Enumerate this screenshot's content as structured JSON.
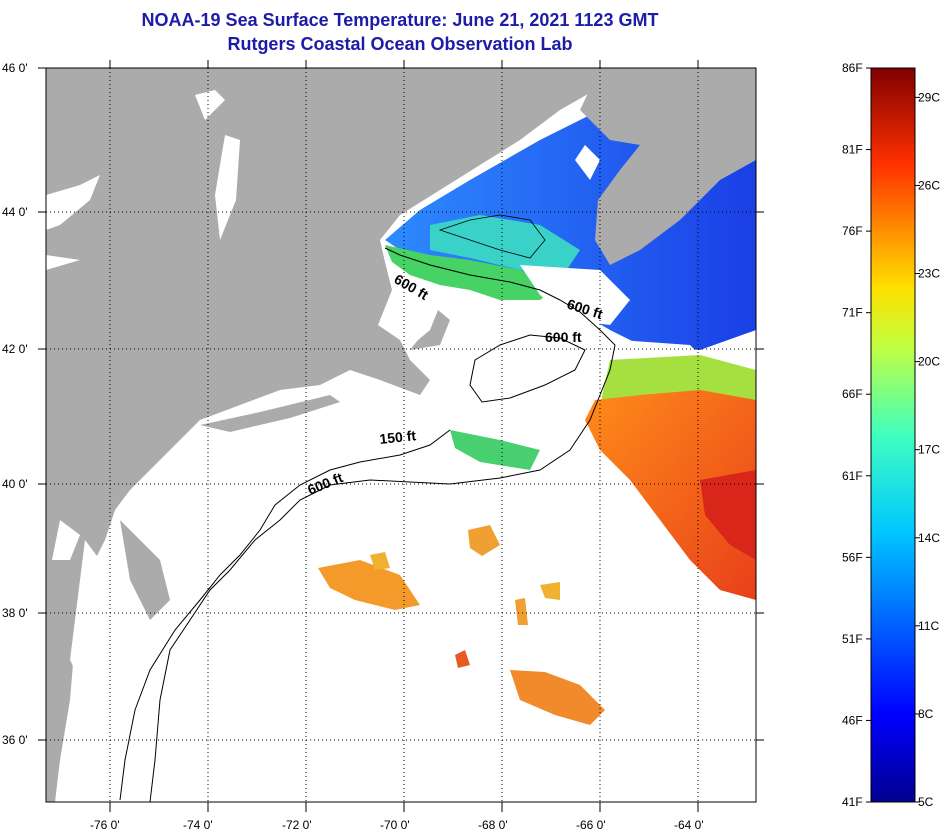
{
  "header": {
    "title": "NOAA-19 Sea Surface Temperature:  June 21, 2021 1123 GMT",
    "subtitle": "Rutgers Coastal Ocean Observation Lab"
  },
  "map": {
    "lon_labels": [
      "-76 0'",
      "-74 0'",
      "-72 0'",
      "-70 0'",
      "-68 0'",
      "-66 0'",
      "-64 0'"
    ],
    "lat_labels": [
      "46 0'",
      "44 0'",
      "42 0'",
      "40 0'",
      "38 0'",
      "36 0'"
    ],
    "contour_labels": [
      "600 ft",
      "600 ft",
      "600 ft",
      "150 ft",
      "600 ft"
    ],
    "colors": {
      "land": "#ababab",
      "water": "#ffffff",
      "grid": "#000000"
    }
  },
  "colorbar": {
    "fahrenheit": [
      "86F",
      "81F",
      "76F",
      "71F",
      "66F",
      "61F",
      "56F",
      "51F",
      "46F",
      "41F"
    ],
    "celsius": [
      "29C",
      "26C",
      "23C",
      "20C",
      "17C",
      "14C",
      "11C",
      "8C",
      "5C"
    ],
    "range_f": [
      41,
      86
    ]
  }
}
